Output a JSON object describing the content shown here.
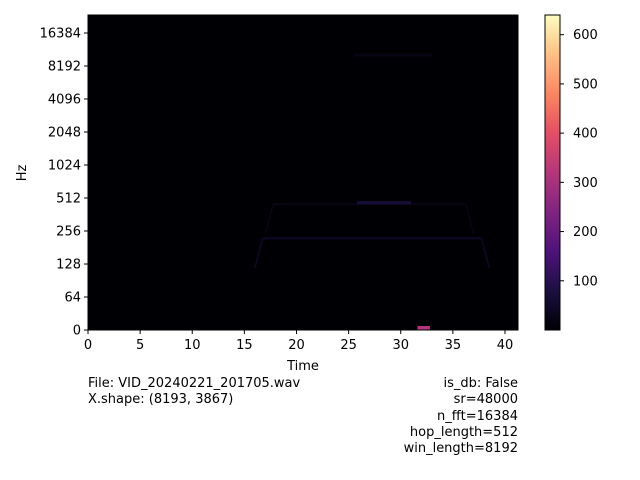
{
  "chart_data": {
    "type": "heatmap",
    "title": "",
    "xlabel": "Time",
    "ylabel": "Hz",
    "x_ticks": [
      "0",
      "5",
      "10",
      "15",
      "20",
      "25",
      "30",
      "35",
      "40"
    ],
    "x_tick_values": [
      0,
      5,
      10,
      15,
      20,
      25,
      30,
      35,
      40
    ],
    "xlim": [
      0,
      41.25
    ],
    "y_ticks": [
      "0",
      "64",
      "128",
      "256",
      "512",
      "1024",
      "2048",
      "4096",
      "8192",
      "16384"
    ],
    "y_scale": "symlog",
    "colormap": "magma",
    "colorbar": {
      "range": [
        0,
        640
      ],
      "ticks": [
        "100",
        "200",
        "300",
        "400",
        "500",
        "600"
      ],
      "tick_values": [
        100,
        200,
        300,
        400,
        500,
        600
      ]
    },
    "features": [
      {
        "kind": "harmonic",
        "freq_hz": 220,
        "t_start": 16,
        "t_end": 38.5,
        "level": 45
      },
      {
        "kind": "harmonic",
        "freq_hz": 450,
        "t_start": 17,
        "t_end": 37,
        "level": 25
      },
      {
        "kind": "burst",
        "freq_hz": 450,
        "t_start": 25.8,
        "t_end": 31,
        "level": 70
      },
      {
        "kind": "burst",
        "freq_hz": 10000,
        "t_start": 25.5,
        "t_end": 33,
        "level": 20
      },
      {
        "kind": "burst",
        "freq_hz": 0,
        "t_start": 31.6,
        "t_end": 32.8,
        "level": 320
      }
    ]
  },
  "info": {
    "file_line": "File: VID_20240221_201705.wav",
    "shape_line": "X.shape: (8193, 3867)",
    "params": [
      "is_db: False",
      "sr=48000",
      "n_fft=16384",
      "hop_length=512",
      "win_length=8192"
    ]
  }
}
